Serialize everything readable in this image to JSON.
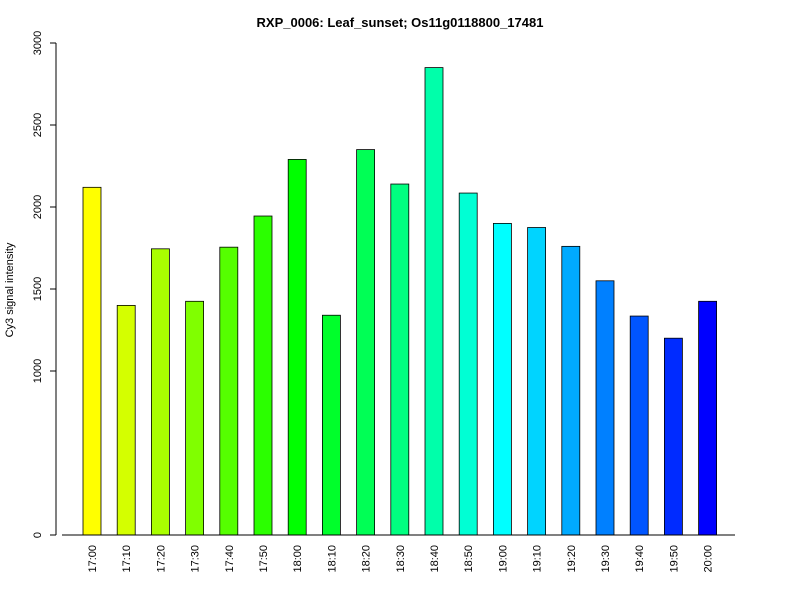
{
  "chart_data": {
    "type": "bar",
    "title": "RXP_0006: Leaf_sunset; Os11g0118800_17481",
    "xlabel": "",
    "ylabel": "Cy3 signal intensity",
    "ylim": [
      0,
      3000
    ],
    "yticks": [
      0,
      1000,
      1500,
      2000,
      2500,
      3000
    ],
    "categories": [
      "17:00",
      "17:10",
      "17:20",
      "17:30",
      "17:40",
      "17:50",
      "18:00",
      "18:10",
      "18:20",
      "18:30",
      "18:40",
      "18:50",
      "19:00",
      "19:10",
      "19:20",
      "19:30",
      "19:40",
      "19:50",
      "20:00"
    ],
    "values": [
      2120,
      1400,
      1745,
      1425,
      1755,
      1945,
      2290,
      1340,
      2350,
      2140,
      2850,
      2085,
      1900,
      1875,
      1760,
      1550,
      1335,
      1200,
      1425
    ],
    "colors": [
      "#ffff00",
      "#d4ff00",
      "#aaff00",
      "#80ff00",
      "#55ff00",
      "#2bff00",
      "#00ff00",
      "#00ff2b",
      "#00ff55",
      "#00ff80",
      "#00ffaa",
      "#00ffd4",
      "#00ffff",
      "#00d4ff",
      "#00aaff",
      "#0080ff",
      "#0055ff",
      "#002bff",
      "#0000ff"
    ],
    "grid": false,
    "legend": "none"
  }
}
